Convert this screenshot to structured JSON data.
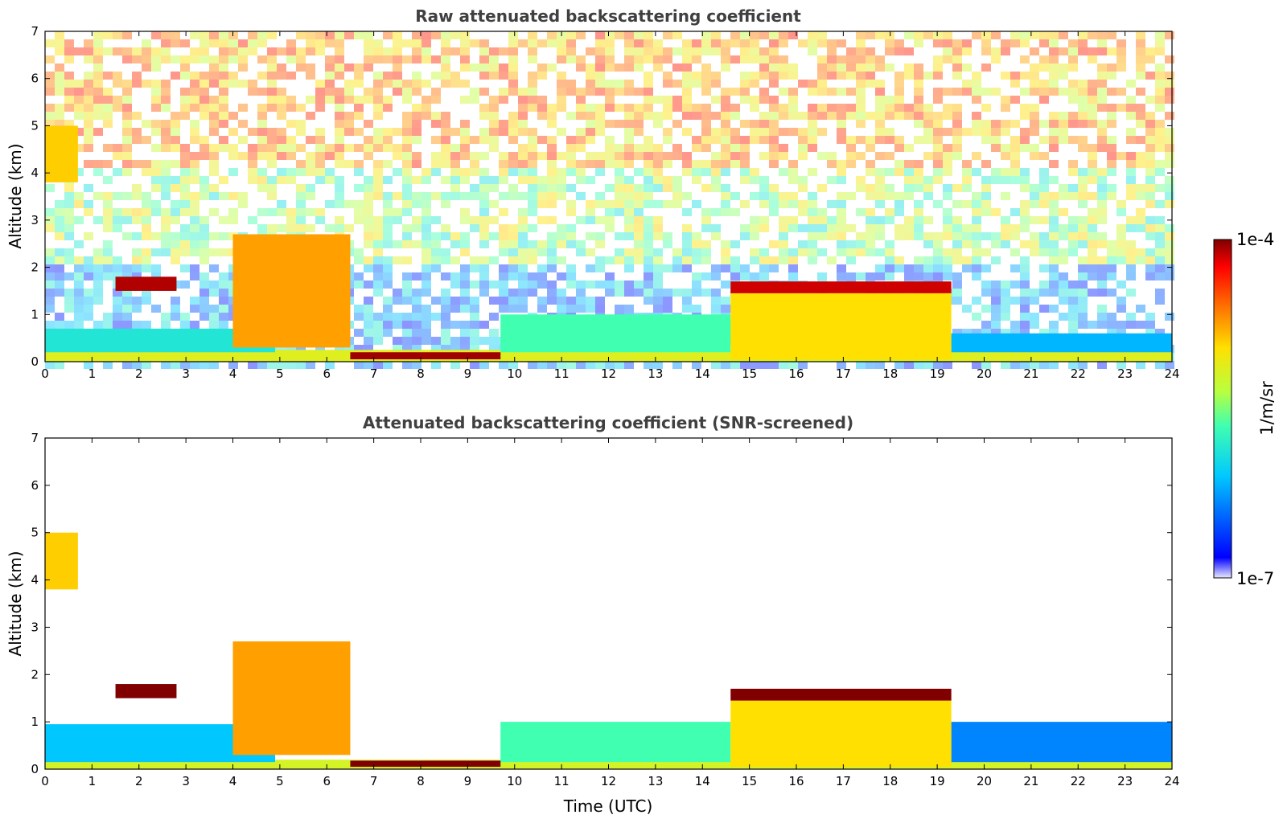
{
  "chart_data": [
    {
      "type": "heatmap",
      "title": "Raw attenuated backscattering coefficient",
      "xlabel": "",
      "ylabel": "Altitude (km)",
      "xlim": [
        0,
        24
      ],
      "ylim": [
        0,
        7
      ],
      "xticks": [
        "0",
        "1",
        "2",
        "3",
        "4",
        "5",
        "6",
        "7",
        "8",
        "9",
        "10",
        "11",
        "12",
        "13",
        "14",
        "15",
        "16",
        "17",
        "18",
        "19",
        "20",
        "21",
        "22",
        "23",
        "24"
      ],
      "yticks": [
        "0",
        "1",
        "2",
        "3",
        "4",
        "5",
        "6",
        "7"
      ],
      "background_noise": true,
      "features": [
        {
          "name": "surface layer",
          "x": [
            0,
            24
          ],
          "y": [
            0,
            0.25
          ],
          "level": 0.62
        },
        {
          "name": "boundary layer",
          "x": [
            0,
            4.9
          ],
          "y": [
            0.2,
            0.7
          ],
          "level": 0.38
        },
        {
          "name": "boundary layer east",
          "x": [
            19.3,
            24
          ],
          "y": [
            0.2,
            0.6
          ],
          "level": 0.28
        },
        {
          "name": "residual layer",
          "x": [
            9.7,
            14.6
          ],
          "y": [
            0.2,
            1.0
          ],
          "level": 0.45
        },
        {
          "name": "cloud deck",
          "x": [
            14.6,
            19.3
          ],
          "y": [
            0.05,
            1.45
          ],
          "level": 0.68
        },
        {
          "name": "cloud top",
          "x": [
            14.6,
            19.3
          ],
          "y": [
            1.45,
            1.7
          ],
          "level": 0.95
        },
        {
          "name": "fog layer",
          "x": [
            6.5,
            9.7
          ],
          "y": [
            0.05,
            0.2
          ],
          "level": 0.98
        },
        {
          "name": "descending layer",
          "x": [
            4.0,
            6.5
          ],
          "y": [
            0.3,
            2.7
          ],
          "level": 0.75
        },
        {
          "name": "mid cloud",
          "x": [
            1.5,
            2.8
          ],
          "y": [
            1.5,
            1.8
          ],
          "level": 0.97
        },
        {
          "name": "high cloud",
          "x": [
            0,
            0.7
          ],
          "y": [
            3.8,
            5.0
          ],
          "level": 0.7
        }
      ],
      "colorbar": {
        "label": "1/m/sr",
        "min_label": "1e-7",
        "max_label": "1e-4"
      }
    },
    {
      "type": "heatmap",
      "title": "Attenuated backscattering coefficient (SNR-screened)",
      "xlabel": "Time (UTC)",
      "ylabel": "Altitude (km)",
      "xlim": [
        0,
        24
      ],
      "ylim": [
        0,
        7
      ],
      "xticks": [
        "0",
        "1",
        "2",
        "3",
        "4",
        "5",
        "6",
        "7",
        "8",
        "9",
        "10",
        "11",
        "12",
        "13",
        "14",
        "15",
        "16",
        "17",
        "18",
        "19",
        "20",
        "21",
        "22",
        "23",
        "24"
      ],
      "yticks": [
        "0",
        "1",
        "2",
        "3",
        "4",
        "5",
        "6",
        "7"
      ],
      "background_noise": false,
      "features": [
        {
          "name": "surface layer",
          "x": [
            0,
            24
          ],
          "y": [
            0,
            0.2
          ],
          "level": 0.6
        },
        {
          "name": "boundary layer",
          "x": [
            0,
            4.9
          ],
          "y": [
            0.15,
            0.95
          ],
          "level": 0.3
        },
        {
          "name": "boundary layer east",
          "x": [
            19.3,
            24
          ],
          "y": [
            0.15,
            1.0
          ],
          "level": 0.22
        },
        {
          "name": "residual layer",
          "x": [
            9.7,
            14.6
          ],
          "y": [
            0.15,
            1.0
          ],
          "level": 0.45
        },
        {
          "name": "cloud deck",
          "x": [
            14.6,
            19.3
          ],
          "y": [
            0.05,
            1.45
          ],
          "level": 0.68
        },
        {
          "name": "cloud top",
          "x": [
            14.6,
            19.3
          ],
          "y": [
            1.45,
            1.7
          ],
          "level": 1.0
        },
        {
          "name": "fog layer",
          "x": [
            6.5,
            9.7
          ],
          "y": [
            0.05,
            0.18
          ],
          "level": 1.0
        },
        {
          "name": "descending layer",
          "x": [
            4.0,
            6.5
          ],
          "y": [
            0.3,
            2.7
          ],
          "level": 0.75
        },
        {
          "name": "mid cloud",
          "x": [
            1.5,
            2.8
          ],
          "y": [
            1.5,
            1.8
          ],
          "level": 1.0
        },
        {
          "name": "high cloud",
          "x": [
            0,
            0.7
          ],
          "y": [
            3.8,
            5.0
          ],
          "level": 0.7
        }
      ]
    }
  ]
}
